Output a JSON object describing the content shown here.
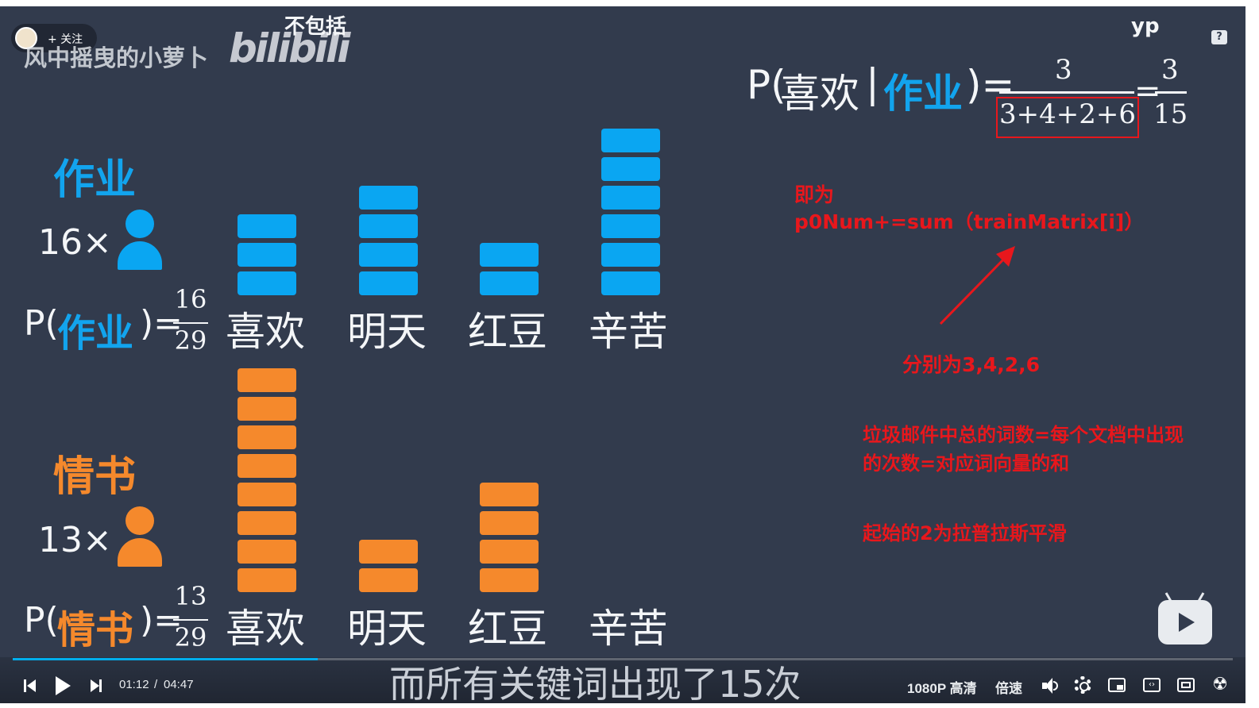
{
  "uploader": {
    "name": "风中摇曳的小萝卜",
    "follow_label": "+ 关注",
    "watermark": "bilibili",
    "overlay_text": "不包括"
  },
  "corner_tag": "yp",
  "help_icon": "question-icon",
  "formula": {
    "prefix": "P(",
    "word1": "喜欢",
    "bar": "|",
    "word2": "作业",
    "suffix": ")=",
    "numerator": "3",
    "denominator": "3+4+2+6",
    "eq2": "=",
    "numerator2": "3",
    "denominator2": "15"
  },
  "classes": [
    {
      "name": "作业",
      "count_label": "16×",
      "prob_prefix": "P(",
      "prob_word": "作业",
      "prob_suffix": ")=",
      "num": "16",
      "den": "29",
      "color": "#0aa6f2"
    },
    {
      "name": "情书",
      "count_label": "13×",
      "prob_prefix": "P(",
      "prob_word": "情书",
      "prob_suffix": ")=",
      "num": "13",
      "den": "29",
      "color": "#f5892c"
    }
  ],
  "chart_data": {
    "type": "bar",
    "categories": [
      "喜欢",
      "明天",
      "红豆",
      "辛苦"
    ],
    "series": [
      {
        "name": "作业",
        "values": [
          3,
          4,
          2,
          6
        ]
      },
      {
        "name": "情书",
        "values": [
          8,
          2,
          4,
          0
        ]
      }
    ]
  },
  "annotations": {
    "line1": "即为",
    "line2": "p0Num+=sum（trainMatrix[i]）",
    "arrow_note": "分别为3,4,2,6",
    "note2_line1": "垃圾邮件中总的词数=每个文档中出现",
    "note2_line2": "的次数=对应词向量的和",
    "note3": "起始的2为拉普拉斯平滑"
  },
  "subtitle": "而所有关键词出现了15次",
  "player": {
    "current_time": "01:12",
    "separator": "/",
    "duration": "04:47",
    "progress_fraction": 0.25,
    "quality_label": "1080P 高清",
    "speed_label": "倍速",
    "icons": [
      "prev-icon",
      "play-icon",
      "next-icon",
      "volume-icon",
      "settings-icon",
      "pip-icon",
      "widescreen-icon",
      "fullscreen-icon",
      "danmaku-icon"
    ]
  }
}
